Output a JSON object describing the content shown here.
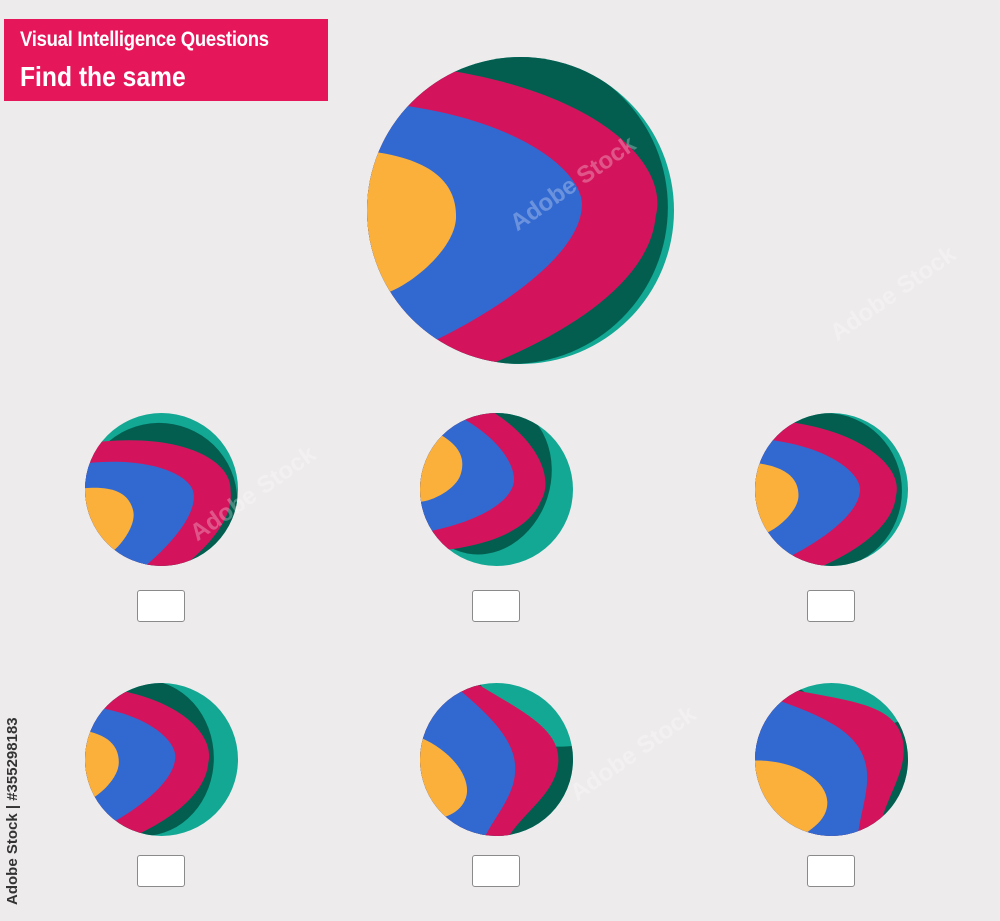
{
  "header": {
    "line1": "Visual Intelligence Questions",
    "line2": "Find the same"
  },
  "side_label": "Adobe Stock | #355298183",
  "watermark": "Adobe Stock",
  "colors": {
    "banner": "#e5175a",
    "teal": "#12a894",
    "dark_green": "#035e50",
    "pink": "#d3145c",
    "blue": "#3269d0",
    "yellow": "#fbb03b",
    "background": "#eeebec"
  },
  "options": [
    {
      "id": 1,
      "checked": false
    },
    {
      "id": 2,
      "checked": false
    },
    {
      "id": 3,
      "checked": false
    },
    {
      "id": 4,
      "checked": false
    },
    {
      "id": 5,
      "checked": false
    },
    {
      "id": 6,
      "checked": false
    }
  ]
}
